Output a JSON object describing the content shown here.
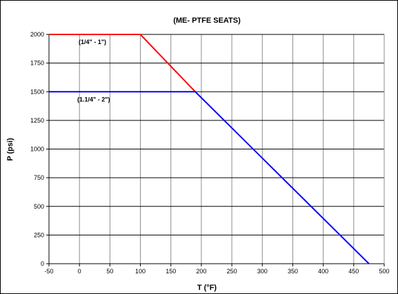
{
  "chart_data": {
    "type": "line",
    "title": "(ME- PTFE SEATS)",
    "xlabel": "T (°F)",
    "ylabel": "P (psi)",
    "xlim": [
      -50,
      500
    ],
    "ylim": [
      0,
      2000
    ],
    "x_ticks": [
      -50,
      0,
      50,
      100,
      150,
      200,
      250,
      300,
      350,
      400,
      450,
      500
    ],
    "y_ticks": [
      0,
      250,
      500,
      750,
      1000,
      1250,
      1500,
      1750,
      2000
    ],
    "grid": true,
    "series": [
      {
        "name": "(1/4\" - 1\")",
        "color": "#ff0000",
        "points": [
          [
            -50,
            2000
          ],
          [
            100,
            2000
          ],
          [
            190,
            1500
          ]
        ]
      },
      {
        "name": "(1.1/4\" - 2\")",
        "color": "#0000ff",
        "points": [
          [
            -50,
            1500
          ],
          [
            190,
            1500
          ],
          [
            475,
            0
          ]
        ]
      }
    ]
  }
}
